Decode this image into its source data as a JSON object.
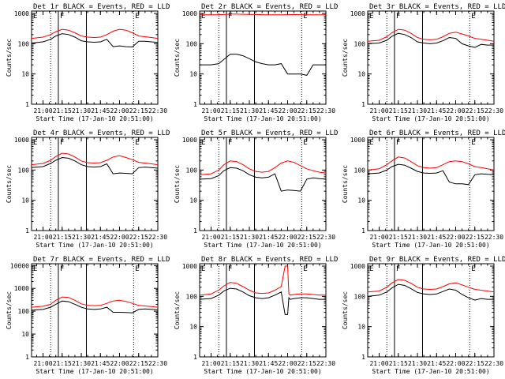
{
  "common": {
    "xticks": [
      "21:00",
      "21:15",
      "21:30",
      "21:45",
      "22:00",
      "22:15",
      "22:30"
    ],
    "xlabel": "Start Time (17-Jan-10 20:51:00)",
    "ylabel": "Counts/sec",
    "x_range": [
      "20:51:00",
      "22:30:00"
    ],
    "series_colors": {
      "events": "#000000",
      "lld": "#ff0000"
    },
    "markers": [
      {
        "label": "E",
        "time": "20:51:00",
        "style": "dotted"
      },
      {
        "label": "",
        "time": "21:06:00",
        "style": "dotted"
      },
      {
        "label": "F",
        "time": "21:12:00",
        "style": "solid"
      },
      {
        "label": "",
        "time": "21:34:00",
        "style": "solid"
      },
      {
        "label": "E",
        "time": "22:11:00",
        "style": "dotted"
      }
    ]
  },
  "chart_data": [
    {
      "type": "line",
      "title": "Det 1r BLACK = Events, RED = LLD",
      "yscale": "log",
      "ylim": [
        1,
        1200
      ],
      "yticks": [
        "1",
        "10",
        "100",
        "1000"
      ],
      "x": [
        "20:51",
        "21:00",
        "21:06",
        "21:10",
        "21:15",
        "21:20",
        "21:25",
        "21:30",
        "21:35",
        "21:40",
        "21:45",
        "21:50",
        "21:55",
        "22:00",
        "22:05",
        "22:10",
        "22:15",
        "22:20",
        "22:25",
        "22:30"
      ],
      "series": [
        {
          "key": "lld",
          "values": [
            150,
            165,
            200,
            250,
            300,
            280,
            230,
            180,
            165,
            160,
            165,
            200,
            260,
            300,
            280,
            230,
            180,
            170,
            160,
            150
          ]
        },
        {
          "key": "events",
          "values": [
            105,
            115,
            140,
            180,
            215,
            200,
            165,
            125,
            115,
            112,
            115,
            140,
            80,
            85,
            80,
            78,
            120,
            120,
            115,
            110
          ]
        }
      ]
    },
    {
      "type": "line",
      "title": "Det 2r BLACK = Events, RED = LLD",
      "yscale": "log",
      "ylim": [
        1,
        1200
      ],
      "yticks": [
        "1",
        "10",
        "100",
        "1000"
      ],
      "x": [
        "20:51",
        "21:00",
        "21:06",
        "21:10",
        "21:15",
        "21:20",
        "21:25",
        "21:30",
        "21:35",
        "21:40",
        "21:45",
        "21:50",
        "21:55",
        "22:00",
        "22:05",
        "22:10",
        "22:15",
        "22:20",
        "22:25",
        "22:30"
      ],
      "series": [
        {
          "key": "lld",
          "values": [
            900,
            900,
            910,
            920,
            950,
            950,
            940,
            930,
            920,
            910,
            900,
            900,
            900,
            910,
            920,
            910,
            900,
            900,
            900,
            900
          ]
        },
        {
          "key": "events",
          "values": [
            20,
            20,
            22,
            30,
            45,
            45,
            40,
            32,
            25,
            22,
            20,
            20,
            22,
            10,
            10,
            10,
            9,
            20,
            20,
            20
          ]
        }
      ]
    },
    {
      "type": "line",
      "title": "Det 3r BLACK = Events, RED = LLD",
      "yscale": "log",
      "ylim": [
        1,
        1200
      ],
      "yticks": [
        "1",
        "10",
        "100",
        "1000"
      ],
      "x": [
        "20:51",
        "21:00",
        "21:06",
        "21:10",
        "21:15",
        "21:20",
        "21:25",
        "21:30",
        "21:35",
        "21:40",
        "21:45",
        "21:50",
        "21:55",
        "22:00",
        "22:05",
        "22:10",
        "22:15",
        "22:20",
        "22:25",
        "22:30"
      ],
      "series": [
        {
          "key": "lld",
          "values": [
            120,
            130,
            170,
            230,
            300,
            280,
            220,
            160,
            140,
            135,
            140,
            170,
            220,
            240,
            210,
            180,
            150,
            140,
            130,
            120
          ]
        },
        {
          "key": "events",
          "values": [
            100,
            105,
            130,
            175,
            220,
            200,
            160,
            115,
            105,
            100,
            105,
            125,
            160,
            150,
            100,
            85,
            75,
            95,
            90,
            90
          ]
        }
      ]
    },
    {
      "type": "line",
      "title": "Det 4r BLACK = Events, RED = LLD",
      "yscale": "log",
      "ylim": [
        1,
        1200
      ],
      "yticks": [
        "1",
        "10",
        "100",
        "1000"
      ],
      "x": [
        "20:51",
        "21:00",
        "21:06",
        "21:10",
        "21:15",
        "21:20",
        "21:25",
        "21:30",
        "21:35",
        "21:40",
        "21:45",
        "21:50",
        "21:55",
        "22:00",
        "22:05",
        "22:10",
        "22:15",
        "22:20",
        "22:25",
        "22:30"
      ],
      "series": [
        {
          "key": "lld",
          "values": [
            150,
            165,
            210,
            280,
            360,
            340,
            270,
            200,
            175,
            170,
            175,
            210,
            270,
            300,
            260,
            220,
            180,
            170,
            160,
            150
          ]
        },
        {
          "key": "events",
          "values": [
            120,
            130,
            165,
            210,
            260,
            245,
            200,
            150,
            130,
            125,
            130,
            160,
            75,
            80,
            78,
            75,
            120,
            125,
            120,
            115
          ]
        }
      ]
    },
    {
      "type": "line",
      "title": "Det 5r BLACK = Events, RED = LLD",
      "yscale": "log",
      "ylim": [
        1,
        1200
      ],
      "yticks": [
        "1",
        "10",
        "100",
        "1000"
      ],
      "x": [
        "20:51",
        "21:00",
        "21:06",
        "21:10",
        "21:15",
        "21:20",
        "21:25",
        "21:30",
        "21:35",
        "21:40",
        "21:45",
        "21:50",
        "21:55",
        "22:00",
        "22:05",
        "22:10",
        "22:15",
        "22:20",
        "22:25",
        "22:30"
      ],
      "series": [
        {
          "key": "lld",
          "values": [
            70,
            75,
            100,
            150,
            200,
            190,
            150,
            110,
            90,
            85,
            90,
            120,
            170,
            200,
            180,
            140,
            110,
            95,
            85,
            80
          ]
        },
        {
          "key": "events",
          "values": [
            50,
            52,
            65,
            95,
            120,
            115,
            95,
            70,
            58,
            55,
            58,
            75,
            20,
            22,
            21,
            20,
            50,
            55,
            52,
            50
          ]
        }
      ]
    },
    {
      "type": "line",
      "title": "Det 6r BLACK = Events, RED = LLD",
      "yscale": "log",
      "ylim": [
        1,
        1200
      ],
      "yticks": [
        "1",
        "10",
        "100",
        "1000"
      ],
      "x": [
        "20:51",
        "21:00",
        "21:06",
        "21:10",
        "21:15",
        "21:20",
        "21:25",
        "21:30",
        "21:35",
        "21:40",
        "21:45",
        "21:50",
        "21:55",
        "22:00",
        "22:05",
        "22:10",
        "22:15",
        "22:20",
        "22:25",
        "22:30"
      ],
      "series": [
        {
          "key": "lld",
          "values": [
            100,
            110,
            150,
            200,
            270,
            250,
            190,
            140,
            120,
            115,
            120,
            150,
            190,
            200,
            190,
            160,
            130,
            120,
            110,
            100
          ]
        },
        {
          "key": "events",
          "values": [
            75,
            80,
            100,
            130,
            155,
            145,
            115,
            90,
            80,
            78,
            80,
            95,
            40,
            35,
            35,
            33,
            70,
            75,
            72,
            70
          ]
        }
      ]
    },
    {
      "type": "line",
      "title": "Det 7r BLACK = Events, RED = LLD",
      "yscale": "log",
      "ylim": [
        1,
        12000
      ],
      "yticks": [
        "1",
        "10",
        "100",
        "1000",
        "10000"
      ],
      "x": [
        "20:51",
        "21:00",
        "21:06",
        "21:10",
        "21:15",
        "21:20",
        "21:25",
        "21:30",
        "21:35",
        "21:40",
        "21:45",
        "21:50",
        "21:55",
        "22:00",
        "22:05",
        "22:10",
        "22:15",
        "22:20",
        "22:25",
        "22:30"
      ],
      "series": [
        {
          "key": "lld",
          "values": [
            150,
            165,
            200,
            300,
            420,
            400,
            300,
            210,
            180,
            175,
            180,
            220,
            280,
            300,
            270,
            220,
            180,
            170,
            160,
            150
          ]
        },
        {
          "key": "events",
          "values": [
            110,
            120,
            150,
            200,
            280,
            260,
            200,
            150,
            125,
            120,
            125,
            150,
            90,
            90,
            88,
            85,
            120,
            125,
            120,
            115
          ]
        }
      ]
    },
    {
      "type": "line",
      "title": "Det 8r BLACK = Events, RED = LLD",
      "yscale": "log",
      "ylim": [
        1,
        1200
      ],
      "yticks": [
        "1",
        "10",
        "100",
        "1000"
      ],
      "x": [
        "20:51",
        "21:00",
        "21:06",
        "21:10",
        "21:15",
        "21:20",
        "21:25",
        "21:30",
        "21:35",
        "21:40",
        "21:45",
        "21:50",
        "21:55",
        "21:58",
        "22:00",
        "22:01",
        "22:02",
        "22:05",
        "22:10",
        "22:15",
        "22:20",
        "22:25",
        "22:30"
      ],
      "series": [
        {
          "key": "lld",
          "values": [
            110,
            120,
            160,
            220,
            290,
            270,
            210,
            160,
            130,
            125,
            130,
            160,
            210,
            1000,
            1000,
            120,
            110,
            115,
            120,
            120,
            115,
            110,
            110
          ]
        },
        {
          "key": "events",
          "values": [
            80,
            85,
            110,
            150,
            185,
            175,
            140,
            105,
            90,
            85,
            90,
            110,
            140,
            25,
            25,
            90,
            80,
            85,
            90,
            90,
            85,
            80,
            80
          ]
        }
      ]
    },
    {
      "type": "line",
      "title": "Det 9r BLACK = Events, RED = LLD",
      "yscale": "log",
      "ylim": [
        1,
        1200
      ],
      "yticks": [
        "1",
        "10",
        "100",
        "1000"
      ],
      "x": [
        "20:51",
        "21:00",
        "21:06",
        "21:10",
        "21:15",
        "21:20",
        "21:25",
        "21:30",
        "21:35",
        "21:40",
        "21:45",
        "21:50",
        "21:55",
        "22:00",
        "22:05",
        "22:10",
        "22:15",
        "22:20",
        "22:25",
        "22:30"
      ],
      "series": [
        {
          "key": "lld",
          "values": [
            140,
            150,
            200,
            280,
            360,
            340,
            270,
            200,
            175,
            170,
            175,
            210,
            260,
            280,
            240,
            200,
            170,
            160,
            150,
            140
          ]
        },
        {
          "key": "events",
          "values": [
            100,
            110,
            140,
            190,
            250,
            230,
            180,
            135,
            120,
            115,
            120,
            145,
            175,
            160,
            115,
            90,
            75,
            85,
            80,
            80
          ]
        }
      ]
    }
  ]
}
